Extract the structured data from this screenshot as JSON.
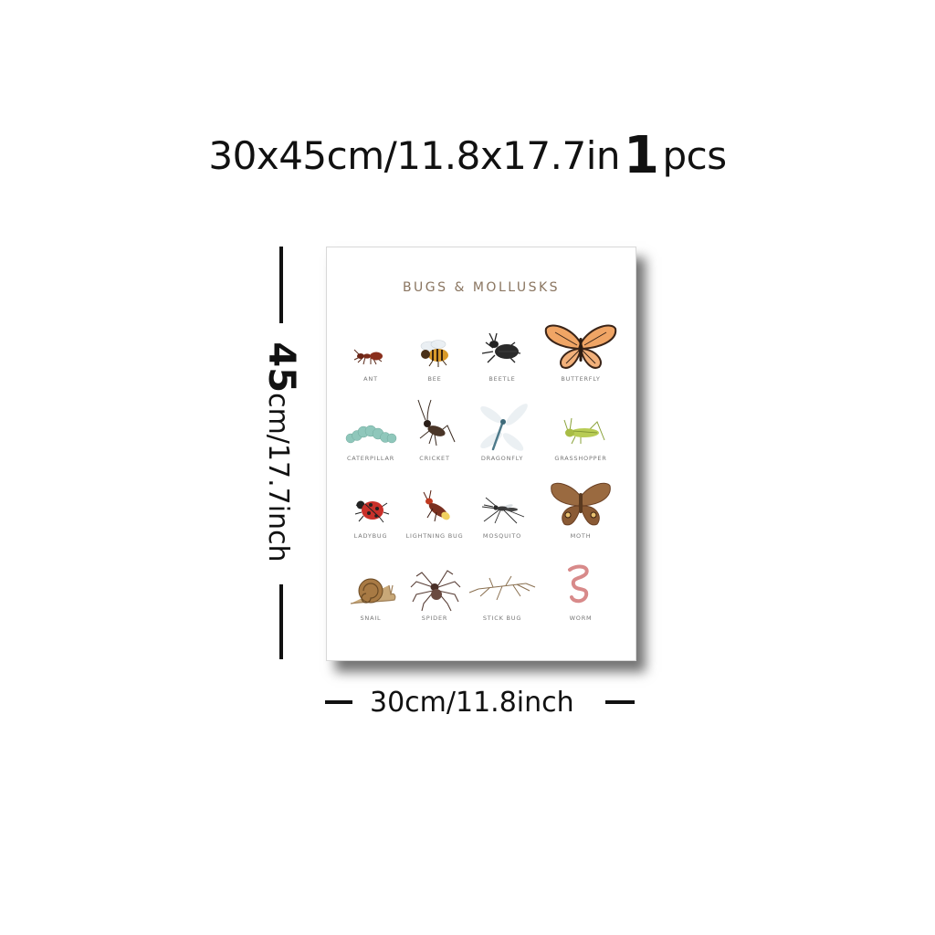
{
  "headline": {
    "size_text": "30x45cm/11.8x17.7in",
    "qty_number": "1",
    "qty_unit": "pcs"
  },
  "poster": {
    "title": "BUGS & MOLLUSKS",
    "items": [
      {
        "label": "ANT",
        "icon": "ant-icon"
      },
      {
        "label": "BEE",
        "icon": "bee-icon"
      },
      {
        "label": "BEETLE",
        "icon": "beetle-icon"
      },
      {
        "label": "BUTTERFLY",
        "icon": "butterfly-icon"
      },
      {
        "label": "CATERPILLAR",
        "icon": "caterpillar-icon"
      },
      {
        "label": "CRICKET",
        "icon": "cricket-icon"
      },
      {
        "label": "DRAGONFLY",
        "icon": "dragonfly-icon"
      },
      {
        "label": "GRASSHOPPER",
        "icon": "grasshopper-icon"
      },
      {
        "label": "LADYBUG",
        "icon": "ladybug-icon"
      },
      {
        "label": "LIGHTNING BUG",
        "icon": "lightning-bug-icon"
      },
      {
        "label": "MOSQUITO",
        "icon": "mosquito-icon"
      },
      {
        "label": "MOTH",
        "icon": "moth-icon"
      },
      {
        "label": "SNAIL",
        "icon": "snail-icon"
      },
      {
        "label": "SPIDER",
        "icon": "spider-icon"
      },
      {
        "label": "STICK BUG",
        "icon": "stick-bug-icon"
      },
      {
        "label": "WORM",
        "icon": "worm-icon"
      }
    ]
  },
  "dimensions": {
    "height_number": "45",
    "height_text": "cm/17.7inch",
    "width_text": "30cm/11.8inch"
  }
}
